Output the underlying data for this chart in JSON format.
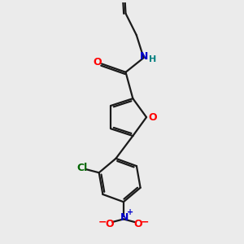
{
  "background_color": "#ebebeb",
  "bond_color": "#1a1a1a",
  "bond_width": 1.6,
  "atom_colors": {
    "O": "#ff0000",
    "N": "#0000cc",
    "H": "#008080",
    "Cl": "#006400"
  },
  "figsize": [
    3.0,
    3.0
  ],
  "dpi": 100
}
